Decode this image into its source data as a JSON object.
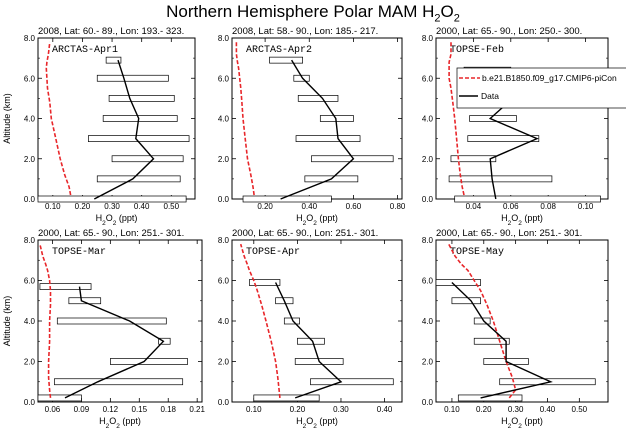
{
  "figure": {
    "title_main": "Northern Hemisphere Polar MAM H",
    "title_sub": "2",
    "title_tail": "O",
    "title_sub2": "2"
  },
  "legend": {
    "model": "b.e21.B1850.f09_g17.CMIP6-piCon",
    "data": "Data"
  },
  "chart_data": [
    {
      "type": "line",
      "header": "2008, Lat:  60.- 89., Lon: 193.- 323.",
      "campaign": "ARCTAS-Apr1",
      "ylabel": "Altitude (km)",
      "xlabel": "H2O2 (ppt)",
      "xlim": [
        0.05,
        0.58
      ],
      "ylim": [
        0,
        8
      ],
      "xticks": [
        "0.10",
        "0.20",
        "0.30",
        "0.40",
        "0.50"
      ],
      "xtick_values": [
        0.1,
        0.2,
        0.3,
        0.4,
        0.5
      ],
      "yticks": [
        "0.0",
        "2.0",
        "4.0",
        "6.0",
        "8.0"
      ],
      "model": {
        "x": [
          0.16,
          0.155,
          0.14,
          0.125,
          0.11,
          0.095,
          0.09,
          0.082,
          0.08,
          0.078,
          0.08,
          0.085,
          0.09
        ],
        "y": [
          0.2,
          0.6,
          1.2,
          2.0,
          3.0,
          4.0,
          4.8,
          5.5,
          6.0,
          6.5,
          6.8,
          7.2,
          7.8
        ]
      },
      "obs": {
        "x": [
          0.24,
          0.37,
          0.44,
          0.38,
          0.39,
          0.36,
          0.34,
          0.32
        ],
        "y": [
          0.0,
          1.0,
          2.0,
          3.0,
          4.0,
          5.0,
          6.0,
          6.9
        ],
        "lo": [
          0.05,
          0.25,
          0.3,
          0.22,
          0.27,
          0.29,
          0.25,
          0.28
        ],
        "hi": [
          0.55,
          0.53,
          0.54,
          0.56,
          0.52,
          0.51,
          0.49,
          0.33
        ]
      }
    },
    {
      "type": "line",
      "header": "2008, Lat:  58.- 90., Lon: 185.- 217.",
      "campaign": "ARCTAS-Apr2",
      "ylabel": "",
      "xlabel": "H2O2 (ppt)",
      "xlim": [
        0.05,
        0.82
      ],
      "ylim": [
        0,
        8
      ],
      "xticks": [
        "0.20",
        "0.40",
        "0.60",
        "0.80"
      ],
      "xtick_values": [
        0.2,
        0.4,
        0.6,
        0.8
      ],
      "yticks": [
        "0.0",
        "2.0",
        "4.0",
        "6.0",
        "8.0"
      ],
      "model": {
        "x": [
          0.15,
          0.145,
          0.135,
          0.12,
          0.11,
          0.1,
          0.095,
          0.09,
          0.085,
          0.08,
          0.075,
          0.07,
          0.07
        ],
        "y": [
          0.2,
          0.6,
          1.2,
          2.0,
          3.0,
          4.0,
          4.8,
          5.5,
          6.0,
          6.5,
          6.8,
          7.2,
          7.8
        ]
      },
      "obs": {
        "x": [
          0.27,
          0.5,
          0.6,
          0.53,
          0.52,
          0.46,
          0.37,
          0.32
        ],
        "y": [
          0.0,
          1.0,
          2.0,
          3.0,
          4.0,
          5.0,
          6.0,
          6.9
        ],
        "lo": [
          0.1,
          0.38,
          0.41,
          0.34,
          0.45,
          0.35,
          0.33,
          0.22
        ],
        "hi": [
          0.5,
          0.62,
          0.78,
          0.63,
          0.6,
          0.53,
          0.4,
          0.37
        ]
      }
    },
    {
      "type": "line",
      "header": "2000, Lat:  65.- 90., Lon: 250.- 300.",
      "campaign": "TOPSE-Feb",
      "ylabel": "",
      "xlabel": "H2O2 (ppt)",
      "xlim": [
        0.02,
        0.112
      ],
      "ylim": [
        0,
        8
      ],
      "xticks": [
        "0.04",
        "0.06",
        "0.08",
        "0.10"
      ],
      "xtick_values": [
        0.04,
        0.06,
        0.08,
        0.1
      ],
      "yticks": [
        "0.0",
        "2.0",
        "4.0",
        "6.0",
        "8.0"
      ],
      "model": {
        "x": [
          0.035,
          0.034,
          0.033,
          0.032,
          0.031,
          0.03,
          0.029,
          0.028,
          0.027,
          0.027,
          0.027,
          0.028,
          0.028
        ],
        "y": [
          0.2,
          0.6,
          1.2,
          2.0,
          3.0,
          4.0,
          4.8,
          5.5,
          6.0,
          6.5,
          6.8,
          7.2,
          7.8
        ]
      },
      "obs": {
        "x": [
          0.052,
          0.05,
          0.049,
          0.074,
          0.049,
          0.061,
          0.045,
          0.042
        ],
        "y": [
          0.0,
          1.0,
          2.0,
          3.0,
          4.0,
          5.0,
          6.0,
          6.4
        ],
        "lo": [
          0.03,
          0.027,
          0.028,
          0.037,
          0.038,
          0.036,
          0.036,
          0.035
        ],
        "hi": [
          0.108,
          0.082,
          0.052,
          0.075,
          0.063,
          0.1,
          0.065,
          0.06
        ]
      }
    },
    {
      "type": "line",
      "header": "2000, Lat:  65.- 90., Lon: 251.- 301.",
      "campaign": "TOPSE-Mar",
      "ylabel": "Altitude (km)",
      "xlabel": "H2O2 (ppt)",
      "xlim": [
        0.045,
        0.215
      ],
      "ylim": [
        0,
        8
      ],
      "xticks": [
        "0.06",
        "0.09",
        "0.12",
        "0.15",
        "0.18",
        "0.21"
      ],
      "xtick_values": [
        0.06,
        0.09,
        0.12,
        0.15,
        0.18,
        0.21
      ],
      "yticks": [
        "0.0",
        "2.0",
        "4.0",
        "6.0",
        "8.0"
      ],
      "model": {
        "x": [
          0.058,
          0.057,
          0.056,
          0.056,
          0.057,
          0.057,
          0.058,
          0.058,
          0.057,
          0.055,
          0.053,
          0.05,
          0.047
        ],
        "y": [
          0.2,
          0.6,
          1.2,
          2.0,
          3.0,
          4.0,
          4.8,
          5.5,
          6.0,
          6.5,
          6.8,
          7.2,
          7.8
        ]
      },
      "obs": {
        "x": [
          0.073,
          0.107,
          0.155,
          0.175,
          0.14,
          0.09,
          0.088
        ],
        "y": [
          0.2,
          1.0,
          2.0,
          3.0,
          4.0,
          5.0,
          5.7
        ],
        "lo": [
          0.045,
          0.062,
          0.12,
          0.17,
          0.065,
          0.077,
          0.047
        ],
        "hi": [
          0.09,
          0.195,
          0.2,
          0.182,
          0.178,
          0.11,
          0.1
        ]
      }
    },
    {
      "type": "line",
      "header": "2000, Lat:  65.- 90., Lon: 251.- 301.",
      "campaign": "TOPSE-Apr",
      "ylabel": "",
      "xlabel": "H2O2 (ppt)",
      "xlim": [
        0.05,
        0.44
      ],
      "ylim": [
        0,
        8
      ],
      "xticks": [
        "0.10",
        "0.20",
        "0.30",
        "0.40"
      ],
      "xtick_values": [
        0.1,
        0.2,
        0.3,
        0.4
      ],
      "yticks": [
        "0.0",
        "2.0",
        "4.0",
        "6.0",
        "8.0"
      ],
      "model": {
        "x": [
          0.16,
          0.158,
          0.155,
          0.15,
          0.14,
          0.128,
          0.118,
          0.108,
          0.1,
          0.09,
          0.085,
          0.078,
          0.07
        ],
        "y": [
          0.2,
          0.6,
          1.2,
          2.0,
          3.0,
          4.0,
          4.8,
          5.5,
          6.0,
          6.5,
          6.8,
          7.2,
          7.8
        ]
      },
      "obs": {
        "x": [
          0.195,
          0.3,
          0.25,
          0.235,
          0.19,
          0.17,
          0.15
        ],
        "y": [
          0.2,
          1.0,
          2.0,
          3.0,
          4.0,
          5.0,
          5.9
        ],
        "lo": [
          0.1,
          0.23,
          0.195,
          0.2,
          0.17,
          0.15,
          0.09
        ],
        "hi": [
          0.25,
          0.42,
          0.305,
          0.262,
          0.205,
          0.19,
          0.16
        ]
      }
    },
    {
      "type": "line",
      "header": "2000, Lat:  65.- 90., Lon: 251.- 301.",
      "campaign": "TOPSE-May",
      "ylabel": "",
      "xlabel": "H2O2 (ppt)",
      "xlim": [
        0.05,
        0.59
      ],
      "ylim": [
        0,
        8
      ],
      "xticks": [
        "0.10",
        "0.20",
        "0.30",
        "0.40",
        "0.50"
      ],
      "xtick_values": [
        0.1,
        0.2,
        0.3,
        0.4,
        0.5
      ],
      "yticks": [
        "0.0",
        "2.0",
        "4.0",
        "6.0",
        "8.0"
      ],
      "model": {
        "x": [
          0.28,
          0.3,
          0.29,
          0.27,
          0.25,
          0.23,
          0.21,
          0.19,
          0.17,
          0.15,
          0.13,
          0.11,
          0.09
        ],
        "y": [
          0.2,
          0.6,
          1.2,
          2.0,
          3.0,
          4.0,
          4.8,
          5.5,
          6.0,
          6.5,
          6.8,
          7.2,
          7.8
        ]
      },
      "obs": {
        "x": [
          0.19,
          0.41,
          0.27,
          0.27,
          0.2,
          0.16,
          0.1
        ],
        "y": [
          0.2,
          1.0,
          2.0,
          3.0,
          4.0,
          5.0,
          5.9
        ],
        "lo": [
          0.12,
          0.25,
          0.2,
          0.17,
          0.17,
          0.1,
          0.05
        ],
        "hi": [
          0.32,
          0.55,
          0.34,
          0.28,
          0.22,
          0.19,
          0.19
        ]
      }
    }
  ]
}
